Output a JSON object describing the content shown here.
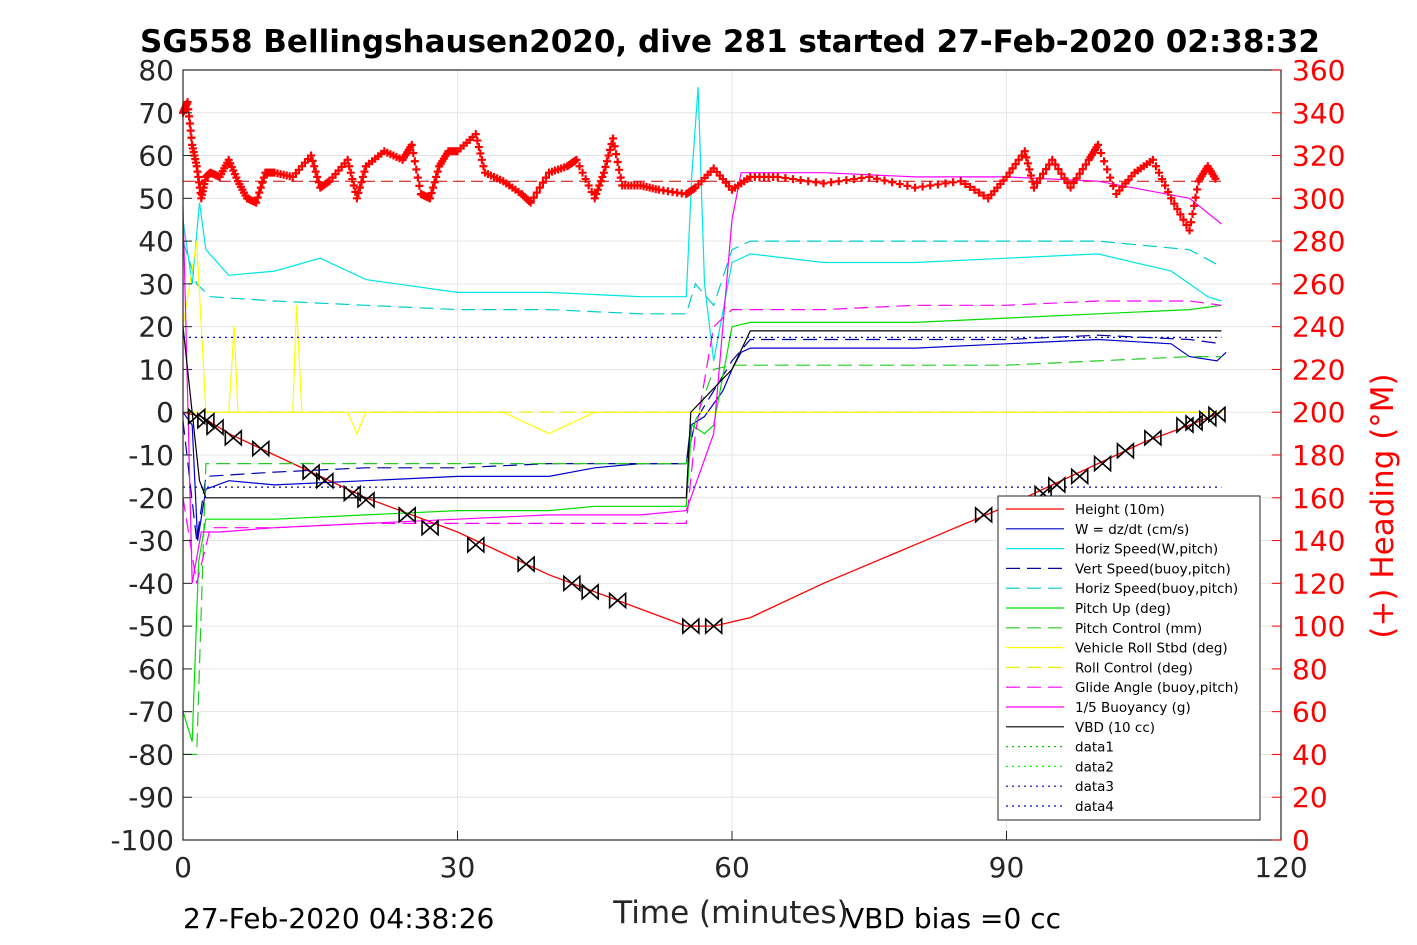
{
  "chart_data": {
    "type": "line",
    "title": "SG558 Bellingshausen2020, dive 281 started 27-Feb-2020 02:38:32",
    "xlabel": "Time (minutes)",
    "ylabel": "",
    "y2label": "(+) Heading (°M)",
    "xlim": [
      0,
      120
    ],
    "ylim": [
      -100,
      80
    ],
    "y2lim": [
      0,
      360
    ],
    "xticks": [
      0,
      30,
      60,
      90,
      120
    ],
    "yticks": [
      80,
      70,
      60,
      50,
      40,
      30,
      20,
      10,
      0,
      -10,
      -20,
      -30,
      -40,
      -50,
      -60,
      -70,
      -80,
      -90,
      -100
    ],
    "y2ticks": [
      360,
      340,
      320,
      300,
      280,
      260,
      240,
      220,
      200,
      180,
      160,
      140,
      120,
      100,
      80,
      60,
      40,
      20,
      0
    ],
    "grid": true,
    "legend_position": "bottom-right",
    "footer_left": "27-Feb-2020 04:38:26",
    "footer_right": "VBD bias =0 cc",
    "series": [
      {
        "name": "Height (10m)",
        "color": "#ff0000",
        "style": "solid",
        "x": [
          0,
          2,
          5,
          10,
          15,
          20,
          25,
          30,
          35,
          40,
          45,
          50,
          55,
          58,
          62,
          70,
          80,
          90,
          95,
          100,
          105,
          110,
          113.5
        ],
        "y": [
          0,
          -1,
          -5,
          -10,
          -15,
          -20,
          -24,
          -28,
          -33,
          -38,
          -42,
          -46,
          -50,
          -50,
          -48,
          -40,
          -31,
          -22,
          -17,
          -12,
          -7,
          -3,
          0
        ]
      },
      {
        "name": "W = dz/dt (cm/s)",
        "color": "#0000cc",
        "style": "solid",
        "x": [
          0,
          1,
          1.6,
          2.5,
          5,
          10,
          20,
          30,
          40,
          45,
          50,
          55,
          55.5,
          57,
          59,
          60,
          61,
          62,
          70,
          80,
          90,
          100,
          108,
          110,
          113,
          114
        ],
        "y": [
          0,
          -3,
          -30,
          -18,
          -16,
          -17,
          -16,
          -15,
          -15,
          -13,
          -12,
          -12,
          -3,
          -1,
          5,
          10,
          14,
          15,
          15,
          15,
          16,
          17,
          16,
          13,
          12,
          14
        ]
      },
      {
        "name": "Horiz Speed(W,pitch)",
        "color": "#00e5e5",
        "style": "solid",
        "x": [
          0,
          1,
          1.8,
          2.5,
          5,
          10,
          15,
          20,
          30,
          40,
          50,
          55,
          55.6,
          56.3,
          57,
          58,
          60,
          62,
          70,
          80,
          90,
          100,
          108,
          110,
          112,
          113.5
        ],
        "y": [
          45,
          30,
          49,
          38,
          32,
          33,
          36,
          31,
          28,
          28,
          27,
          27,
          55,
          76,
          30,
          12,
          35,
          37,
          35,
          35,
          36,
          37,
          33,
          30,
          27,
          26
        ]
      },
      {
        "name": "Vert Speed(buoy,pitch)",
        "color": "#0000aa",
        "style": "dashed",
        "x": [
          0,
          1.5,
          2.5,
          10,
          20,
          30,
          40,
          50,
          55,
          56,
          58,
          60,
          62,
          70,
          80,
          90,
          100,
          110,
          113.5
        ],
        "y": [
          -2,
          -30,
          -15,
          -14,
          -13,
          -13,
          -12,
          -12,
          -12,
          -2,
          5,
          12,
          17,
          17,
          17,
          17,
          18,
          17,
          16
        ]
      },
      {
        "name": "Horiz Speed(buoy,pitch)",
        "color": "#00cccc",
        "style": "dashed",
        "x": [
          0,
          1.5,
          3,
          10,
          20,
          30,
          40,
          50,
          55,
          56,
          58,
          60,
          62,
          70,
          80,
          90,
          100,
          110,
          113.5
        ],
        "y": [
          40,
          30,
          27,
          26,
          25,
          24,
          24,
          23,
          23,
          30,
          25,
          38,
          40,
          40,
          40,
          40,
          40,
          38,
          34
        ]
      },
      {
        "name": "Pitch Up (deg)",
        "color": "#00dd00",
        "style": "solid",
        "x": [
          0,
          1,
          1.7,
          2.5,
          5,
          10,
          20,
          30,
          40,
          45,
          50,
          55,
          55.6,
          57,
          58,
          60,
          62,
          70,
          80,
          90,
          100,
          110,
          113.5
        ],
        "y": [
          -70,
          -77,
          -35,
          -25,
          -25,
          -25,
          -24,
          -23,
          -23,
          -22,
          -22,
          -22,
          -3,
          -5,
          -3,
          20,
          21,
          21,
          21,
          22,
          23,
          24,
          25
        ]
      },
      {
        "name": "Pitch Control (mm)",
        "color": "#22cc22",
        "style": "dashed",
        "x": [
          0,
          1.5,
          2.5,
          10,
          20,
          30,
          40,
          50,
          55,
          56,
          58,
          60,
          62,
          70,
          80,
          90,
          100,
          110,
          113.5
        ],
        "y": [
          -80,
          -80,
          -12,
          -12,
          -12,
          -12,
          -12,
          -12,
          -12,
          -2,
          10,
          11,
          11,
          11,
          11,
          11,
          12,
          13,
          13
        ]
      },
      {
        "name": "Vehicle Roll Stbd (deg)",
        "color": "#ffff00",
        "style": "solid",
        "x": [
          0,
          1.5,
          2.5,
          5,
          5.6,
          6,
          10,
          12,
          12.4,
          13,
          18,
          19,
          20,
          25,
          30,
          35,
          40,
          45,
          50,
          55,
          58,
          60,
          62,
          70,
          80,
          90,
          100,
          110,
          113.5
        ],
        "y": [
          20,
          40,
          0,
          0,
          20,
          0,
          0,
          0,
          25,
          0,
          0,
          -5,
          0,
          0,
          0,
          0,
          -5,
          0,
          0,
          0,
          0,
          0,
          0,
          0,
          0,
          0,
          0,
          0,
          0
        ]
      },
      {
        "name": "Roll Control (deg)",
        "color": "#eeee00",
        "style": "dashed",
        "x": [
          0,
          2,
          3,
          20,
          40,
          55,
          56,
          60,
          113.5
        ],
        "y": [
          0,
          0,
          0,
          0,
          0,
          0,
          0,
          0,
          0
        ]
      },
      {
        "name": "Glide Angle (buoy,pitch)",
        "color": "#ff00ff",
        "style": "dashed",
        "x": [
          0,
          1.5,
          3,
          10,
          20,
          30,
          40,
          50,
          55,
          56,
          58,
          60,
          62,
          70,
          80,
          90,
          100,
          110,
          113.5
        ],
        "y": [
          -20,
          -40,
          -27,
          -27,
          -26,
          -26,
          -26,
          -26,
          -26,
          -5,
          20,
          24,
          24,
          24,
          25,
          25,
          26,
          26,
          25
        ]
      },
      {
        "name": "1/5 Buoyancy (g)",
        "color": "#ff00ff",
        "style": "solid",
        "x": [
          0,
          1,
          2,
          4,
          10,
          20,
          30,
          40,
          50,
          55,
          58,
          60,
          61,
          62,
          70,
          80,
          90,
          100,
          105,
          110,
          113.5
        ],
        "y": [
          48,
          -40,
          -28,
          -28,
          -27,
          -26,
          -25,
          -24,
          -24,
          -23,
          -5,
          45,
          56,
          56,
          56,
          55,
          55,
          54,
          52,
          50,
          44
        ]
      },
      {
        "name": "VBD (10 cc)",
        "color": "#000000",
        "style": "solid",
        "x": [
          0,
          1.8,
          2.5,
          10,
          20,
          30,
          40,
          50,
          55,
          55.5,
          60,
          62,
          70,
          80,
          90,
          100,
          110,
          113.5
        ],
        "y": [
          20,
          -16,
          -20,
          -20,
          -20,
          -20,
          -20,
          -20,
          -20,
          0,
          10,
          19,
          19,
          19,
          19,
          19,
          19,
          19
        ]
      },
      {
        "name": "data1",
        "color": "#00cc00",
        "style": "dotted",
        "x": [],
        "y": []
      },
      {
        "name": "data2",
        "color": "#00ff00",
        "style": "dotted",
        "x": [],
        "y": []
      },
      {
        "name": "data3",
        "color": "#0000aa",
        "style": "dotted",
        "x": [
          0,
          113.5
        ],
        "y": [
          -17.5,
          -17.5
        ]
      },
      {
        "name": "data4",
        "color": "#0000cc",
        "style": "dotted",
        "x": [
          0,
          113.5
        ],
        "y": [
          17.5,
          17.5
        ]
      }
    ],
    "heading_series": {
      "axis": "right",
      "marker": "+",
      "color": "#ff0000",
      "x": [
        0,
        0.5,
        1,
        1.5,
        2,
        2.5,
        3,
        4,
        5,
        6,
        7,
        8,
        9,
        10,
        12,
        14,
        15,
        16,
        18,
        19,
        20,
        22,
        24,
        25,
        26,
        27,
        28,
        29,
        30,
        32,
        33,
        35,
        37,
        38,
        40,
        42,
        43,
        45,
        46,
        47,
        48,
        50,
        52,
        55,
        56,
        58,
        60,
        62,
        65,
        70,
        75,
        80,
        85,
        88,
        90,
        92,
        93,
        95,
        97,
        99,
        100,
        102,
        104,
        106,
        108,
        110,
        111,
        112,
        113
      ],
      "y": [
        340,
        345,
        325,
        315,
        300,
        310,
        312,
        310,
        318,
        308,
        300,
        298,
        312,
        312,
        310,
        320,
        305,
        308,
        318,
        300,
        315,
        322,
        318,
        325,
        302,
        300,
        315,
        322,
        322,
        330,
        312,
        308,
        302,
        298,
        312,
        315,
        318,
        300,
        312,
        328,
        306,
        306,
        304,
        302,
        305,
        314,
        304,
        310,
        310,
        307,
        310,
        305,
        308,
        300,
        310,
        322,
        305,
        318,
        305,
        318,
        325,
        302,
        312,
        318,
        300,
        285,
        308,
        315,
        308
      ]
    },
    "heading_mean": 308,
    "markers": {
      "symbol": "triangle-pair",
      "color": "#000000",
      "x": [
        1.5,
        2.5,
        3.5,
        5.5,
        8.5,
        14,
        15.5,
        18.5,
        20,
        24.5,
        27,
        32,
        37.5,
        42.5,
        44.5,
        47.5,
        55.5,
        58,
        87.5,
        94,
        95.5,
        98,
        100.5,
        103,
        106,
        109.5,
        110.5,
        112,
        113
      ],
      "y": [
        -1,
        -2,
        -3.5,
        -6,
        -8.5,
        -14,
        -16,
        -19,
        -20.5,
        -24,
        -27,
        -31,
        -35.5,
        -40,
        -42,
        -44,
        -50,
        -50,
        -24,
        -19,
        -17,
        -15,
        -12,
        -9,
        -6,
        -3,
        -2.5,
        -1.5,
        -0.5
      ]
    }
  }
}
